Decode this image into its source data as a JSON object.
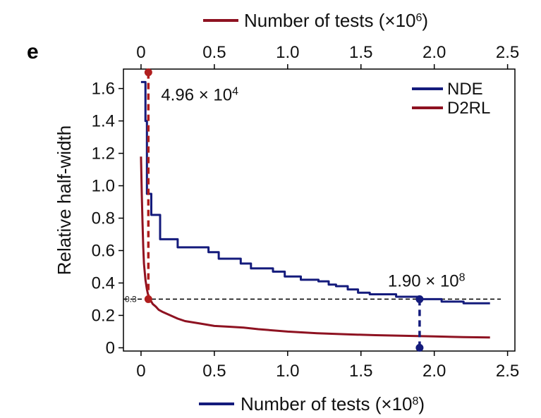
{
  "panel_label": "e",
  "chart_data": {
    "type": "line",
    "ylabel": "Relative half-width",
    "bottom_axis": {
      "label": "Number of tests (×10",
      "exp": "8",
      "close": ")",
      "ticks": [
        "0",
        "0.5",
        "1.0",
        "1.5",
        "2.0",
        "2.5"
      ],
      "tick_values": [
        0,
        0.5,
        1.0,
        1.5,
        2.0,
        2.5
      ],
      "range": [
        -0.12,
        2.55
      ],
      "series_color": "#141b7c"
    },
    "top_axis": {
      "label": "Number of tests (×10",
      "exp": "6",
      "close": ")",
      "ticks": [
        "0",
        "0.5",
        "1.0",
        "1.5",
        "2.0",
        "2.5"
      ],
      "tick_values": [
        0,
        0.5,
        1.0,
        1.5,
        2.0,
        2.5
      ],
      "range": [
        -0.12,
        2.55
      ],
      "series_color": "#8e1221"
    },
    "y_axis": {
      "ticks": [
        "0",
        "0.2",
        "0.4",
        "0.6",
        "0.8",
        "1.0",
        "1.2",
        "1.4",
        "1.6"
      ],
      "tick_values": [
        0,
        0.2,
        0.4,
        0.6,
        0.8,
        1.0,
        1.2,
        1.4,
        1.6
      ],
      "range": [
        -0.02,
        1.72
      ]
    },
    "legend": {
      "placement": "top-right",
      "entries": [
        {
          "name": "NDE",
          "color": "#141b7c"
        },
        {
          "name": "D2RL",
          "color": "#8e1221"
        }
      ]
    },
    "series": [
      {
        "name": "NDE",
        "axis": "bottom",
        "color": "#141b7c",
        "step": true,
        "points": [
          [
            0.0,
            1.64
          ],
          [
            0.03,
            1.64
          ],
          [
            0.03,
            1.4
          ],
          [
            0.04,
            1.4
          ],
          [
            0.04,
            0.95
          ],
          [
            0.07,
            0.95
          ],
          [
            0.07,
            0.82
          ],
          [
            0.13,
            0.82
          ],
          [
            0.13,
            0.67
          ],
          [
            0.25,
            0.67
          ],
          [
            0.25,
            0.62
          ],
          [
            0.46,
            0.62
          ],
          [
            0.46,
            0.59
          ],
          [
            0.53,
            0.59
          ],
          [
            0.53,
            0.55
          ],
          [
            0.68,
            0.55
          ],
          [
            0.68,
            0.52
          ],
          [
            0.75,
            0.52
          ],
          [
            0.75,
            0.49
          ],
          [
            0.9,
            0.49
          ],
          [
            0.9,
            0.47
          ],
          [
            0.98,
            0.47
          ],
          [
            0.98,
            0.44
          ],
          [
            1.09,
            0.44
          ],
          [
            1.09,
            0.42
          ],
          [
            1.21,
            0.42
          ],
          [
            1.21,
            0.41
          ],
          [
            1.28,
            0.41
          ],
          [
            1.28,
            0.39
          ],
          [
            1.33,
            0.39
          ],
          [
            1.33,
            0.38
          ],
          [
            1.41,
            0.38
          ],
          [
            1.41,
            0.36
          ],
          [
            1.48,
            0.36
          ],
          [
            1.48,
            0.34
          ],
          [
            1.56,
            0.34
          ],
          [
            1.56,
            0.33
          ],
          [
            1.74,
            0.33
          ],
          [
            1.74,
            0.315
          ],
          [
            1.9,
            0.315
          ],
          [
            1.9,
            0.3
          ],
          [
            2.05,
            0.3
          ],
          [
            2.05,
            0.285
          ],
          [
            2.2,
            0.285
          ],
          [
            2.2,
            0.275
          ],
          [
            2.38,
            0.275
          ]
        ]
      },
      {
        "name": "D2RL",
        "axis": "bottom",
        "color": "#8e1221",
        "step": false,
        "points": [
          [
            0.0,
            1.18
          ],
          [
            0.005,
            0.95
          ],
          [
            0.01,
            0.78
          ],
          [
            0.015,
            0.62
          ],
          [
            0.02,
            0.52
          ],
          [
            0.03,
            0.42
          ],
          [
            0.04,
            0.36
          ],
          [
            0.05,
            0.32
          ],
          [
            0.06,
            0.3
          ],
          [
            0.08,
            0.27
          ],
          [
            0.1,
            0.255
          ],
          [
            0.12,
            0.235
          ],
          [
            0.15,
            0.22
          ],
          [
            0.2,
            0.2
          ],
          [
            0.25,
            0.18
          ],
          [
            0.3,
            0.165
          ],
          [
            0.4,
            0.15
          ],
          [
            0.5,
            0.135
          ],
          [
            0.6,
            0.13
          ],
          [
            0.7,
            0.125
          ],
          [
            0.8,
            0.115
          ],
          [
            1.0,
            0.1
          ],
          [
            1.2,
            0.09
          ],
          [
            1.4,
            0.083
          ],
          [
            1.6,
            0.078
          ],
          [
            1.8,
            0.074
          ],
          [
            2.0,
            0.07
          ],
          [
            2.2,
            0.066
          ],
          [
            2.38,
            0.064
          ]
        ]
      }
    ],
    "threshold": {
      "value": 0.3,
      "label": "0.3"
    },
    "annotations": [
      {
        "id": "d2rl-marker",
        "text": "4.96 × 10",
        "exp": "4",
        "axis": "bottom",
        "x": 0.05,
        "y": 0.3,
        "top_y": 1.7,
        "color": "#b01e1e"
      },
      {
        "id": "nde-marker",
        "text": "1.90 × 10",
        "exp": "8",
        "axis": "bottom",
        "x": 1.9,
        "y": 0.3,
        "bottom_y": 0.0,
        "color": "#141b7c"
      }
    ]
  }
}
